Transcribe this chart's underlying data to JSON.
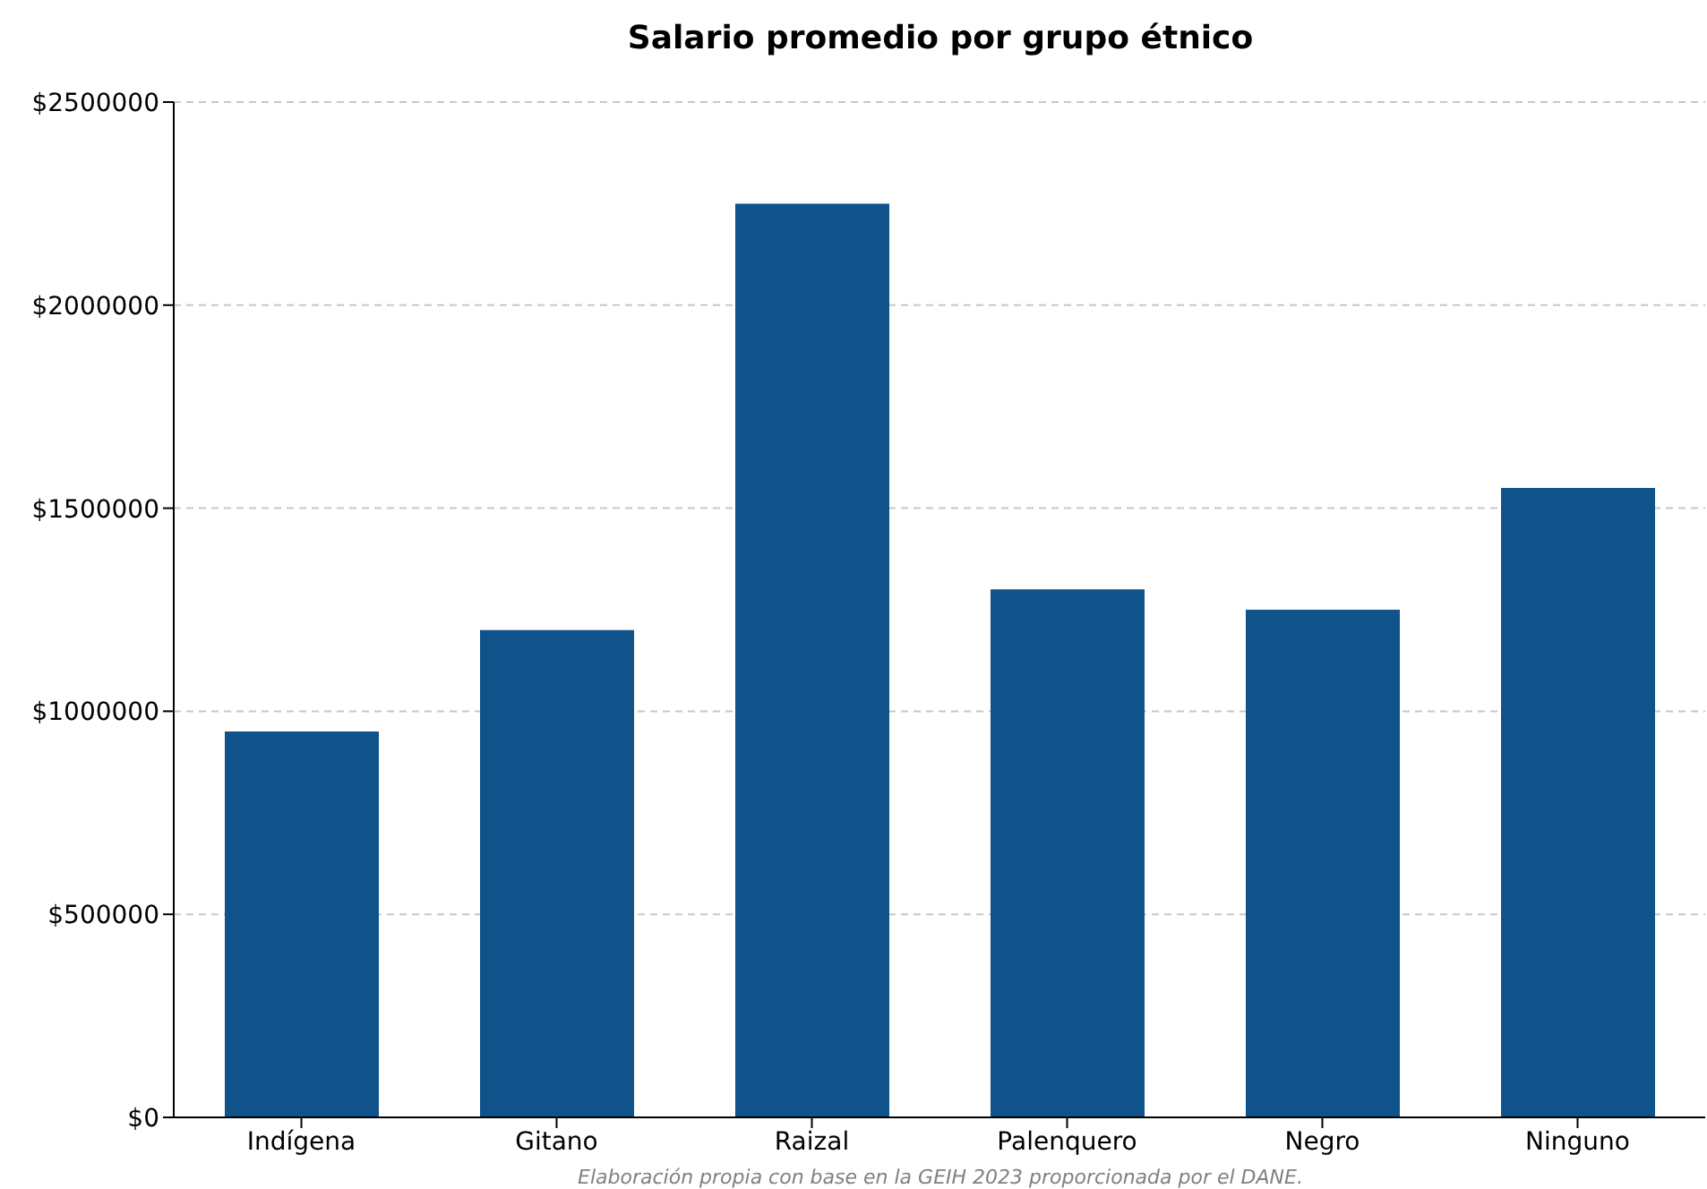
{
  "chart_data": {
    "type": "bar",
    "title": "Salario promedio por grupo étnico",
    "categories": [
      "Indígena",
      "Gitano",
      "Raizal",
      "Palenquero",
      "Negro",
      "Ninguno"
    ],
    "values": [
      950000,
      1200000,
      2250000,
      1300000,
      1250000,
      1550000
    ],
    "color": "#10538b",
    "ylim": [
      0,
      2500000
    ],
    "yticks": [
      {
        "value": 0,
        "label": "$0"
      },
      {
        "value": 500000,
        "label": "$500000"
      },
      {
        "value": 1000000,
        "label": "$1000000"
      },
      {
        "value": 1500000,
        "label": "$1500000"
      },
      {
        "value": 2000000,
        "label": "$2000000"
      },
      {
        "value": 2500000,
        "label": "$2500000"
      }
    ],
    "grid": "y",
    "annotations": [
      "Elaboración propia con base en la GEIH 2023 proporcionada por el DANE."
    ]
  }
}
